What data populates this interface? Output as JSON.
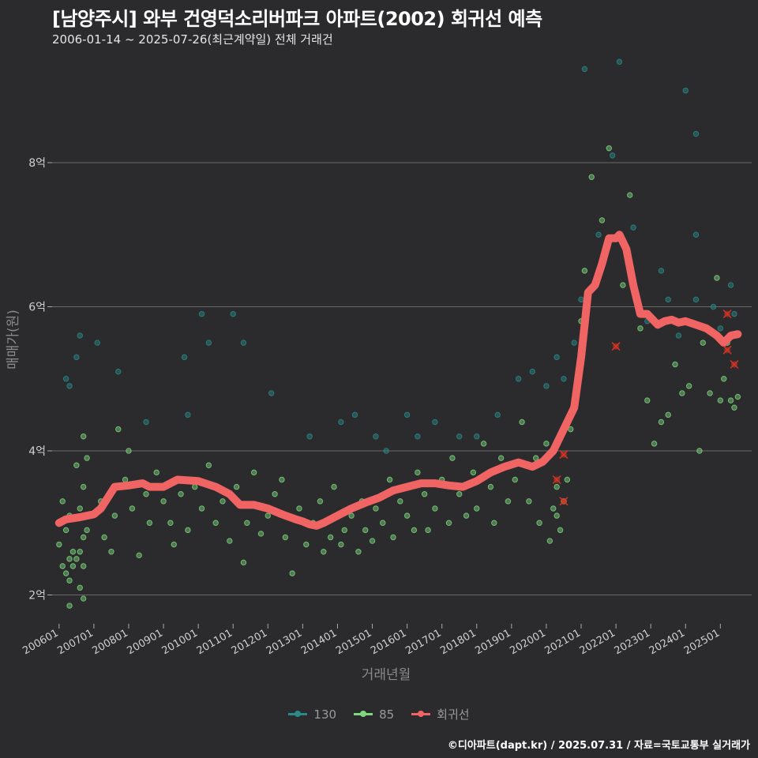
{
  "title": "[남양주시] 와부 건영덕소리버파크 아파트(2002) 회귀선 예측",
  "subtitle": "2006-01-14 ~ 2025-07-26(최근계약일) 전체 거래건",
  "footer": "©디아파트(dapt.kr) / 2025.07.31 / 자료=국토교통부 실거래가",
  "colors": {
    "s130": "#2a8a8a",
    "s85": "#7ed87e",
    "regression": "#f06464",
    "grid": "#6a6a6a"
  },
  "chart_data": {
    "type": "scatter",
    "title": "[남양주시] 와부 건영덕소리버파크 아파트(2002) 회귀선 예측",
    "xlabel": "거래년월",
    "ylabel": "매매가(원)",
    "ylim": [
      1.6,
      9.6
    ],
    "y_ticks": [
      {
        "v": 2,
        "label": "2억"
      },
      {
        "v": 4,
        "label": "4억"
      },
      {
        "v": 6,
        "label": "6억"
      },
      {
        "v": 8,
        "label": "8억"
      }
    ],
    "xlim": [
      2005.8,
      2025.9
    ],
    "x_ticks": [
      "200601",
      "200701",
      "200801",
      "200901",
      "201001",
      "201101",
      "201201",
      "201301",
      "201401",
      "201501",
      "201601",
      "201701",
      "201801",
      "201901",
      "202001",
      "202101",
      "202201",
      "202301",
      "202401",
      "202501"
    ],
    "legend_position": "bottom",
    "series": [
      {
        "name": "130",
        "points": [
          [
            2006.2,
            5.0
          ],
          [
            2006.3,
            4.9
          ],
          [
            2006.5,
            5.3
          ],
          [
            2006.6,
            5.6
          ],
          [
            2007.1,
            5.5
          ],
          [
            2007.7,
            5.1
          ],
          [
            2008.5,
            4.4
          ],
          [
            2009.6,
            5.3
          ],
          [
            2009.7,
            4.5
          ],
          [
            2010.1,
            5.9
          ],
          [
            2010.3,
            5.5
          ],
          [
            2011.0,
            5.9
          ],
          [
            2011.3,
            5.5
          ],
          [
            2012.1,
            4.8
          ],
          [
            2013.2,
            4.2
          ],
          [
            2014.1,
            4.4
          ],
          [
            2014.5,
            4.5
          ],
          [
            2015.1,
            4.2
          ],
          [
            2015.4,
            4.0
          ],
          [
            2016.0,
            4.5
          ],
          [
            2016.3,
            4.2
          ],
          [
            2016.8,
            4.4
          ],
          [
            2017.5,
            4.2
          ],
          [
            2018.0,
            4.2
          ],
          [
            2018.6,
            4.5
          ],
          [
            2019.2,
            5.0
          ],
          [
            2019.6,
            5.1
          ],
          [
            2020.0,
            4.9
          ],
          [
            2020.3,
            5.3
          ],
          [
            2020.5,
            5.0
          ],
          [
            2020.8,
            5.5
          ],
          [
            2021.0,
            6.1
          ],
          [
            2021.1,
            9.3
          ],
          [
            2021.5,
            7.0
          ],
          [
            2021.9,
            8.1
          ],
          [
            2022.1,
            9.4
          ],
          [
            2022.5,
            7.1
          ],
          [
            2022.9,
            5.8
          ],
          [
            2023.3,
            6.5
          ],
          [
            2023.5,
            6.1
          ],
          [
            2023.8,
            5.6
          ],
          [
            2024.0,
            9.0
          ],
          [
            2024.3,
            8.4
          ],
          [
            2024.3,
            7.0
          ],
          [
            2024.3,
            6.1
          ],
          [
            2024.8,
            6.0
          ],
          [
            2025.0,
            5.7
          ],
          [
            2025.3,
            6.3
          ],
          [
            2025.4,
            5.9
          ]
        ]
      },
      {
        "name": "85",
        "points": [
          [
            2006.0,
            2.7
          ],
          [
            2006.1,
            2.4
          ],
          [
            2006.1,
            3.3
          ],
          [
            2006.2,
            2.3
          ],
          [
            2006.2,
            2.9
          ],
          [
            2006.3,
            1.85
          ],
          [
            2006.3,
            2.2
          ],
          [
            2006.3,
            2.5
          ],
          [
            2006.3,
            3.1
          ],
          [
            2006.4,
            2.4
          ],
          [
            2006.4,
            2.6
          ],
          [
            2006.5,
            2.5
          ],
          [
            2006.5,
            3.8
          ],
          [
            2006.6,
            2.1
          ],
          [
            2006.6,
            2.6
          ],
          [
            2006.6,
            3.2
          ],
          [
            2006.7,
            1.95
          ],
          [
            2006.7,
            2.4
          ],
          [
            2006.7,
            2.8
          ],
          [
            2006.7,
            3.5
          ],
          [
            2006.7,
            4.2
          ],
          [
            2006.8,
            2.9
          ],
          [
            2006.8,
            3.9
          ],
          [
            2006.9,
            3.1
          ],
          [
            2007.2,
            3.3
          ],
          [
            2007.3,
            2.8
          ],
          [
            2007.5,
            2.6
          ],
          [
            2007.6,
            3.1
          ],
          [
            2007.7,
            4.3
          ],
          [
            2007.9,
            3.6
          ],
          [
            2008.0,
            4.0
          ],
          [
            2008.1,
            3.2
          ],
          [
            2008.3,
            2.55
          ],
          [
            2008.5,
            3.4
          ],
          [
            2008.6,
            3.0
          ],
          [
            2008.8,
            3.7
          ],
          [
            2009.0,
            3.3
          ],
          [
            2009.2,
            3.0
          ],
          [
            2009.3,
            2.7
          ],
          [
            2009.5,
            3.4
          ],
          [
            2009.7,
            2.9
          ],
          [
            2009.9,
            3.5
          ],
          [
            2010.1,
            3.2
          ],
          [
            2010.3,
            3.8
          ],
          [
            2010.5,
            3.0
          ],
          [
            2010.7,
            3.3
          ],
          [
            2010.9,
            2.75
          ],
          [
            2011.1,
            3.5
          ],
          [
            2011.3,
            2.45
          ],
          [
            2011.4,
            3.0
          ],
          [
            2011.6,
            3.7
          ],
          [
            2011.8,
            2.85
          ],
          [
            2012.0,
            3.1
          ],
          [
            2012.2,
            3.4
          ],
          [
            2012.4,
            3.6
          ],
          [
            2012.5,
            2.8
          ],
          [
            2012.7,
            2.3
          ],
          [
            2012.9,
            3.2
          ],
          [
            2013.1,
            2.7
          ],
          [
            2013.3,
            3.0
          ],
          [
            2013.5,
            3.3
          ],
          [
            2013.6,
            2.6
          ],
          [
            2013.8,
            2.8
          ],
          [
            2013.9,
            3.5
          ],
          [
            2014.1,
            2.7
          ],
          [
            2014.2,
            2.9
          ],
          [
            2014.4,
            3.1
          ],
          [
            2014.6,
            2.6
          ],
          [
            2014.7,
            3.3
          ],
          [
            2014.8,
            2.9
          ],
          [
            2015.0,
            2.75
          ],
          [
            2015.1,
            3.2
          ],
          [
            2015.3,
            3.0
          ],
          [
            2015.5,
            3.6
          ],
          [
            2015.6,
            2.8
          ],
          [
            2015.8,
            3.3
          ],
          [
            2016.0,
            3.1
          ],
          [
            2016.2,
            2.9
          ],
          [
            2016.3,
            3.7
          ],
          [
            2016.5,
            3.4
          ],
          [
            2016.6,
            2.9
          ],
          [
            2016.8,
            3.2
          ],
          [
            2017.0,
            3.6
          ],
          [
            2017.2,
            3.0
          ],
          [
            2017.3,
            3.9
          ],
          [
            2017.5,
            3.4
          ],
          [
            2017.7,
            3.1
          ],
          [
            2017.9,
            3.7
          ],
          [
            2018.0,
            3.2
          ],
          [
            2018.2,
            4.1
          ],
          [
            2018.4,
            3.5
          ],
          [
            2018.5,
            3.0
          ],
          [
            2018.7,
            3.9
          ],
          [
            2018.9,
            3.3
          ],
          [
            2019.1,
            3.6
          ],
          [
            2019.3,
            4.4
          ],
          [
            2019.5,
            3.3
          ],
          [
            2019.7,
            3.9
          ],
          [
            2019.8,
            3.0
          ],
          [
            2020.0,
            4.1
          ],
          [
            2020.1,
            2.75
          ],
          [
            2020.2,
            3.2
          ],
          [
            2020.3,
            3.1
          ],
          [
            2020.3,
            3.5
          ],
          [
            2020.4,
            2.9
          ],
          [
            2020.5,
            3.3
          ],
          [
            2020.6,
            3.6
          ],
          [
            2020.7,
            4.3
          ],
          [
            2020.8,
            4.7
          ],
          [
            2020.9,
            5.0
          ],
          [
            2021.0,
            5.8
          ],
          [
            2021.1,
            6.5
          ],
          [
            2021.3,
            7.8
          ],
          [
            2021.6,
            7.2
          ],
          [
            2021.8,
            8.2
          ],
          [
            2022.2,
            6.3
          ],
          [
            2022.4,
            7.55
          ],
          [
            2022.7,
            5.7
          ],
          [
            2022.9,
            4.7
          ],
          [
            2023.1,
            4.1
          ],
          [
            2023.3,
            4.4
          ],
          [
            2023.5,
            4.5
          ],
          [
            2023.7,
            5.2
          ],
          [
            2023.9,
            4.8
          ],
          [
            2024.1,
            4.9
          ],
          [
            2024.4,
            4.0
          ],
          [
            2024.5,
            5.5
          ],
          [
            2024.7,
            4.8
          ],
          [
            2024.9,
            6.4
          ],
          [
            2025.0,
            4.7
          ],
          [
            2025.1,
            5.0
          ],
          [
            2025.2,
            5.5
          ],
          [
            2025.3,
            4.7
          ],
          [
            2025.4,
            4.6
          ],
          [
            2025.5,
            4.75
          ]
        ]
      },
      {
        "name": "회귀선",
        "points": [
          [
            2006.0,
            3.0
          ],
          [
            2006.2,
            3.05
          ],
          [
            2006.6,
            3.08
          ],
          [
            2007.0,
            3.12
          ],
          [
            2007.2,
            3.2
          ],
          [
            2007.4,
            3.35
          ],
          [
            2007.6,
            3.5
          ],
          [
            2008.0,
            3.52
          ],
          [
            2008.4,
            3.55
          ],
          [
            2008.6,
            3.5
          ],
          [
            2009.0,
            3.5
          ],
          [
            2009.4,
            3.6
          ],
          [
            2010.0,
            3.58
          ],
          [
            2010.5,
            3.5
          ],
          [
            2010.9,
            3.4
          ],
          [
            2011.2,
            3.25
          ],
          [
            2011.6,
            3.25
          ],
          [
            2012.0,
            3.2
          ],
          [
            2012.4,
            3.12
          ],
          [
            2012.8,
            3.05
          ],
          [
            2013.0,
            3.02
          ],
          [
            2013.2,
            2.98
          ],
          [
            2013.4,
            2.96
          ],
          [
            2013.6,
            3.0
          ],
          [
            2014.0,
            3.1
          ],
          [
            2014.4,
            3.2
          ],
          [
            2014.8,
            3.28
          ],
          [
            2015.2,
            3.35
          ],
          [
            2015.6,
            3.45
          ],
          [
            2016.0,
            3.5
          ],
          [
            2016.4,
            3.55
          ],
          [
            2016.8,
            3.55
          ],
          [
            2017.2,
            3.52
          ],
          [
            2017.6,
            3.5
          ],
          [
            2018.0,
            3.58
          ],
          [
            2018.4,
            3.7
          ],
          [
            2018.8,
            3.78
          ],
          [
            2019.2,
            3.84
          ],
          [
            2019.6,
            3.78
          ],
          [
            2019.9,
            3.85
          ],
          [
            2020.2,
            4.0
          ],
          [
            2020.5,
            4.3
          ],
          [
            2020.8,
            4.6
          ],
          [
            2021.0,
            5.3
          ],
          [
            2021.2,
            6.2
          ],
          [
            2021.4,
            6.3
          ],
          [
            2021.6,
            6.6
          ],
          [
            2021.8,
            6.95
          ],
          [
            2022.0,
            6.95
          ],
          [
            2022.1,
            7.0
          ],
          [
            2022.3,
            6.8
          ],
          [
            2022.5,
            6.3
          ],
          [
            2022.7,
            5.9
          ],
          [
            2022.9,
            5.9
          ],
          [
            2023.0,
            5.85
          ],
          [
            2023.2,
            5.75
          ],
          [
            2023.4,
            5.8
          ],
          [
            2023.6,
            5.82
          ],
          [
            2023.8,
            5.78
          ],
          [
            2024.0,
            5.8
          ],
          [
            2024.3,
            5.75
          ],
          [
            2024.6,
            5.7
          ],
          [
            2024.9,
            5.6
          ],
          [
            2025.1,
            5.5
          ],
          [
            2025.3,
            5.6
          ],
          [
            2025.5,
            5.62
          ]
        ]
      }
    ],
    "markers": [
      [
        2020.3,
        3.6
      ],
      [
        2020.5,
        3.3
      ],
      [
        2020.5,
        3.95
      ],
      [
        2022.0,
        5.45
      ],
      [
        2025.2,
        5.9
      ],
      [
        2025.2,
        5.4
      ],
      [
        2025.4,
        5.2
      ]
    ]
  }
}
